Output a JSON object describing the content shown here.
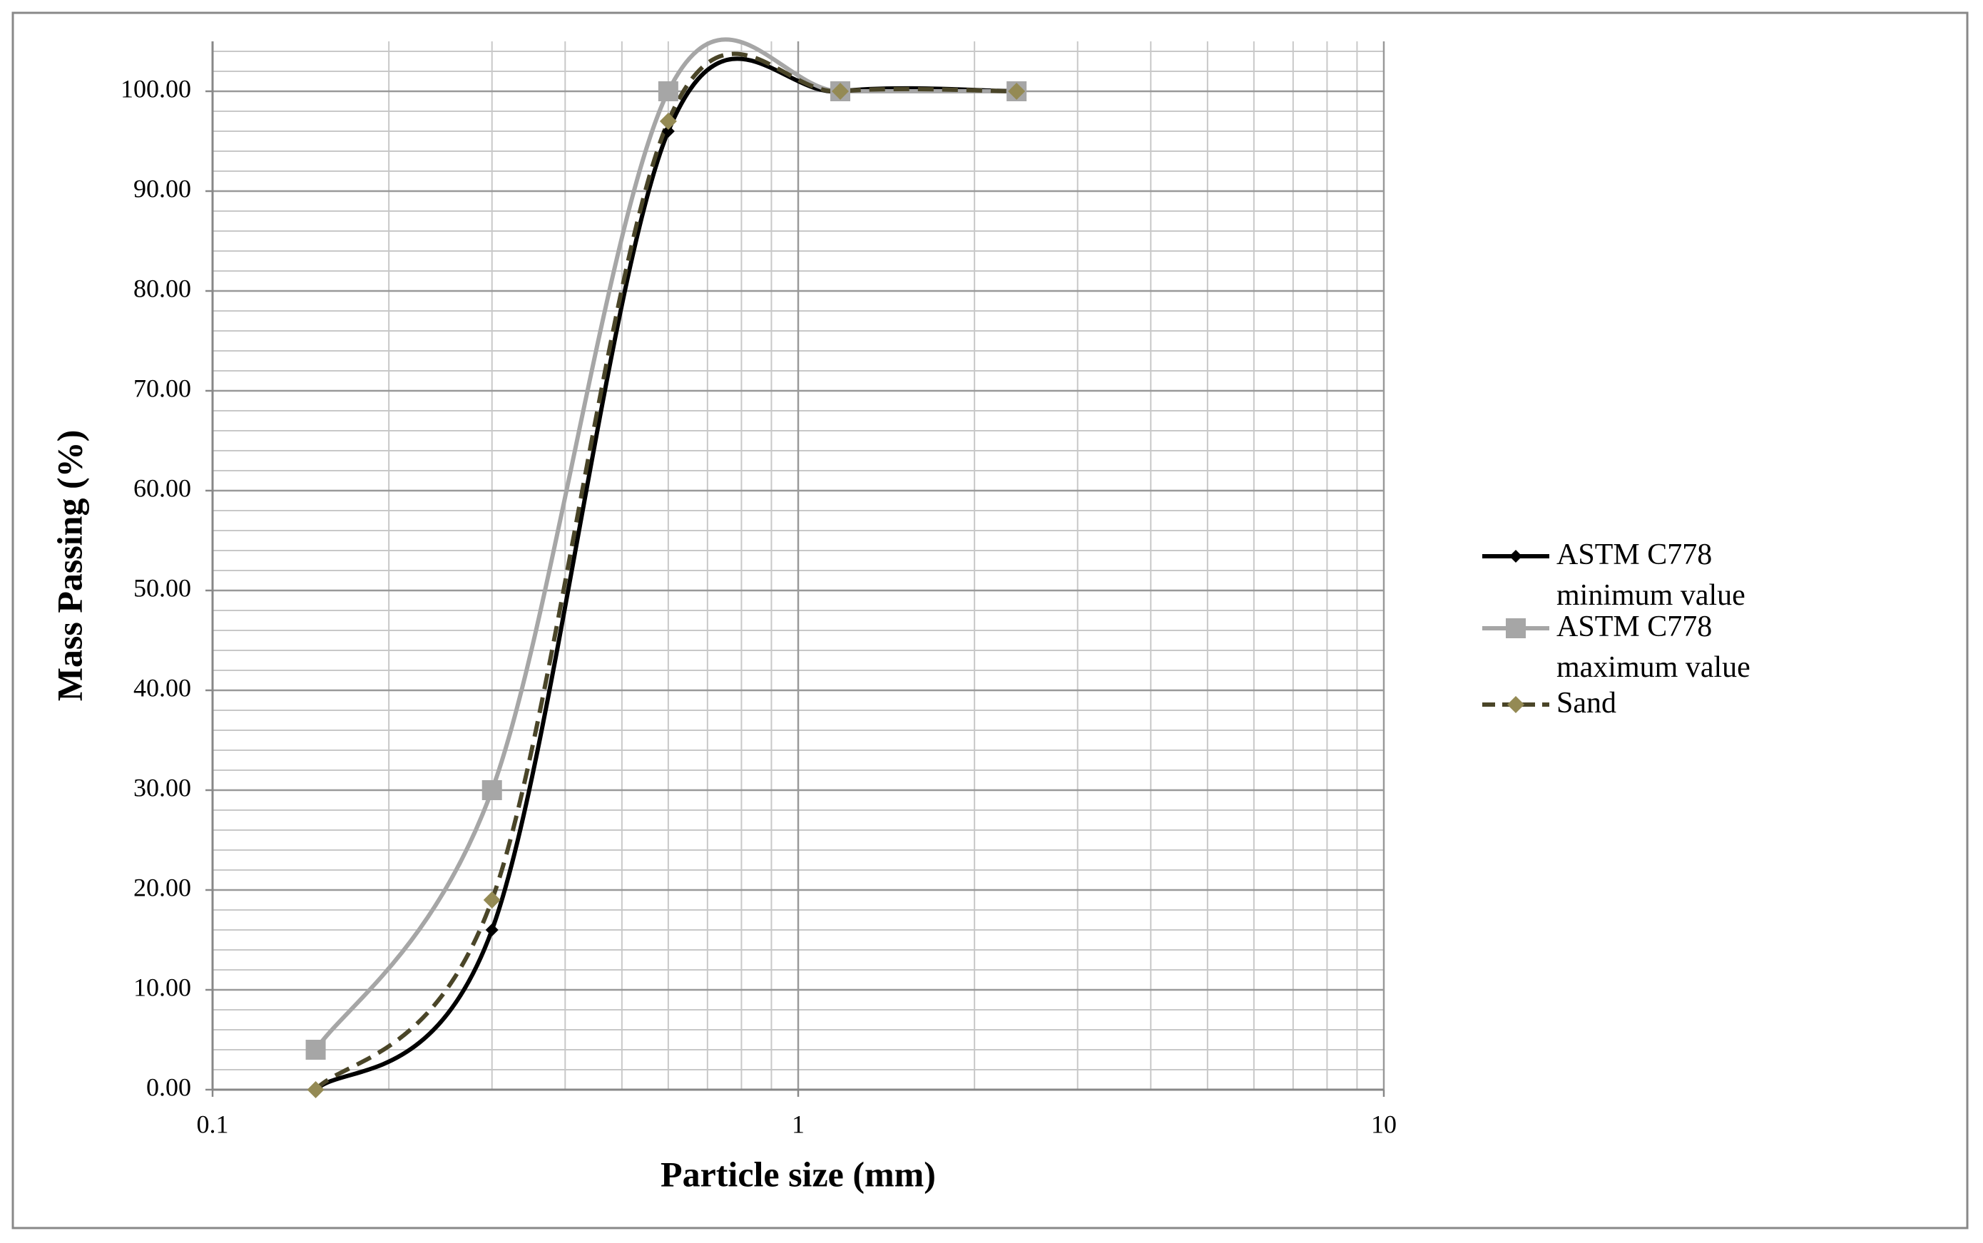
{
  "chart_data": {
    "type": "line",
    "xlabel": "Particle size (mm)",
    "ylabel": "Mass Passing (%)",
    "x": [
      0.15,
      0.3,
      0.6,
      1.18,
      2.36
    ],
    "xscale": "log",
    "xlim": [
      0.1,
      10
    ],
    "xticks": [
      0.1,
      1,
      10
    ],
    "xminorticks": [
      0.2,
      0.3,
      0.4,
      0.5,
      0.6,
      0.7,
      0.8,
      0.9,
      2,
      3,
      4,
      5,
      6,
      7,
      8,
      9
    ],
    "ylim": [
      0,
      105
    ],
    "yticks": [
      {
        "value": 0,
        "label": "0.00"
      },
      {
        "value": 10,
        "label": "10.00"
      },
      {
        "value": 20,
        "label": "20.00"
      },
      {
        "value": 30,
        "label": "30.00"
      },
      {
        "value": 40,
        "label": "40.00"
      },
      {
        "value": 50,
        "label": "50.00"
      },
      {
        "value": 60,
        "label": "60.00"
      },
      {
        "value": 70,
        "label": "70.00"
      },
      {
        "value": 80,
        "label": "80.00"
      },
      {
        "value": 90,
        "label": "90.00"
      },
      {
        "value": 100,
        "label": "100.00"
      }
    ],
    "yminorticks": [
      2,
      4,
      6,
      8,
      12,
      14,
      16,
      18,
      22,
      24,
      26,
      28,
      32,
      34,
      36,
      38,
      42,
      44,
      46,
      48,
      52,
      54,
      56,
      58,
      62,
      64,
      66,
      68,
      72,
      74,
      76,
      78,
      82,
      84,
      86,
      88,
      92,
      94,
      96,
      98,
      102,
      104
    ],
    "grid": true,
    "smooth": true,
    "legend": "right",
    "series": [
      {
        "name": "ASTM C778 minimum value",
        "color": "#000000",
        "marker": "diamond",
        "marker_color": "#000000",
        "dashed": false,
        "values": [
          0,
          16,
          96,
          100,
          100
        ]
      },
      {
        "name": "ASTM C778 maximum value",
        "color": "#a6a6a6",
        "marker": "square",
        "marker_color": "#a6a6a6",
        "dashed": false,
        "values": [
          4,
          30,
          100,
          100,
          100
        ]
      },
      {
        "name": "Sand",
        "color": "#4a4528",
        "marker": "diamond",
        "marker_color": "#948a54",
        "dashed": true,
        "values": [
          0,
          19,
          97,
          100,
          100
        ]
      }
    ]
  }
}
